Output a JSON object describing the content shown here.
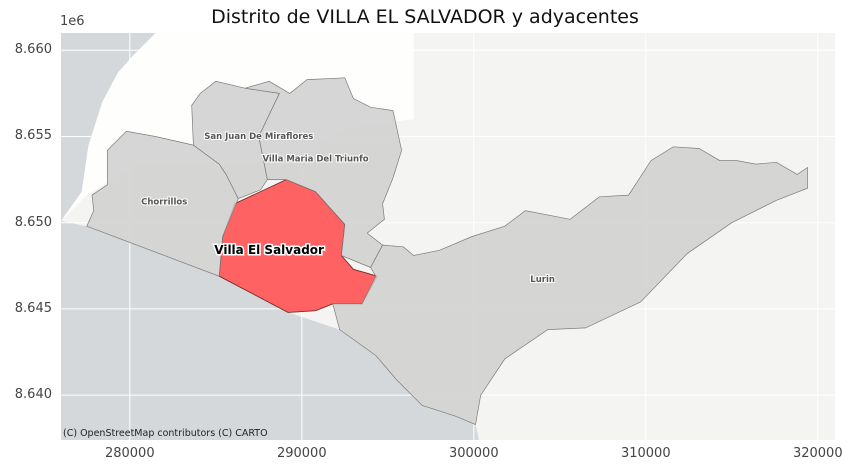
{
  "chart_data": {
    "type": "map",
    "title": "Distrito de VILLA EL SALVADOR y adyacentes",
    "axis_exponent_label": "1e6",
    "xlim": [
      276000,
      321000
    ],
    "ylim": [
      8637400,
      8661000
    ],
    "x_ticks": [
      {
        "value": 280000,
        "label": "280000"
      },
      {
        "value": 290000,
        "label": "290000"
      },
      {
        "value": 300000,
        "label": "300000"
      },
      {
        "value": 310000,
        "label": "310000"
      },
      {
        "value": 320000,
        "label": "320000"
      }
    ],
    "y_ticks": [
      {
        "value": 8640000,
        "label": "8.640"
      },
      {
        "value": 8645000,
        "label": "8.645"
      },
      {
        "value": 8650000,
        "label": "8.650"
      },
      {
        "value": 8655000,
        "label": "8.655"
      },
      {
        "value": 8660000,
        "label": "8.660"
      }
    ],
    "grid": true,
    "colors": {
      "highlight": "#ff5a5a",
      "neighbor": "#cfcfcf",
      "sea": "#d4d8da",
      "land": "#f4f4f2",
      "urban": "#ffffff",
      "grid": "#ffffff"
    },
    "districts": [
      {
        "name": "Villa El Salvador",
        "highlight": true,
        "label_at": [
          288100,
          8648400
        ],
        "boundary": [
          [
            286100,
            8651100
          ],
          [
            289100,
            8652500
          ],
          [
            290800,
            8651800
          ],
          [
            292500,
            8649900
          ],
          [
            292300,
            8648100
          ],
          [
            293000,
            8647300
          ],
          [
            294400,
            8646900
          ],
          [
            293500,
            8645300
          ],
          [
            291800,
            8645300
          ],
          [
            290800,
            8644900
          ],
          [
            289200,
            8644800
          ],
          [
            285200,
            8646900
          ],
          [
            285400,
            8649200
          ]
        ]
      },
      {
        "name": "Chorrillos",
        "highlight": false,
        "label_at": [
          282000,
          8651200
        ],
        "boundary": [
          [
            277800,
            8651600
          ],
          [
            278700,
            8652200
          ],
          [
            278700,
            8654200
          ],
          [
            279800,
            8655300
          ],
          [
            281500,
            8655000
          ],
          [
            283700,
            8654500
          ],
          [
            285200,
            8653400
          ],
          [
            285600,
            8652800
          ],
          [
            286300,
            8651400
          ],
          [
            285400,
            8649200
          ],
          [
            285200,
            8646900
          ],
          [
            277500,
            8649800
          ],
          [
            277900,
            8650700
          ]
        ]
      },
      {
        "name": "San Juan De Miraflores",
        "highlight": false,
        "label_at": [
          287500,
          8655000
        ],
        "boundary": [
          [
            283700,
            8654500
          ],
          [
            283600,
            8656800
          ],
          [
            284100,
            8657500
          ],
          [
            285000,
            8658200
          ],
          [
            286700,
            8657800
          ],
          [
            288700,
            8657500
          ],
          [
            287500,
            8655000
          ],
          [
            288000,
            8652500
          ],
          [
            287600,
            8651900
          ],
          [
            286300,
            8651400
          ],
          [
            285600,
            8652800
          ],
          [
            285200,
            8653400
          ]
        ]
      },
      {
        "name": "Villa Maria Del Triunfo",
        "highlight": false,
        "label_at": [
          290800,
          8653700
        ],
        "boundary": [
          [
            286700,
            8657800
          ],
          [
            288100,
            8658200
          ],
          [
            289300,
            8657500
          ],
          [
            290300,
            8658300
          ],
          [
            292500,
            8658400
          ],
          [
            293000,
            8657200
          ],
          [
            294000,
            8656700
          ],
          [
            295300,
            8656500
          ],
          [
            295800,
            8654200
          ],
          [
            295300,
            8652600
          ],
          [
            294700,
            8651100
          ],
          [
            294800,
            8650200
          ],
          [
            293800,
            8649400
          ],
          [
            294700,
            8648700
          ],
          [
            294000,
            8647400
          ],
          [
            292300,
            8648100
          ],
          [
            292500,
            8649900
          ],
          [
            290800,
            8651800
          ],
          [
            289100,
            8652500
          ],
          [
            288000,
            8652500
          ],
          [
            287500,
            8655000
          ],
          [
            288700,
            8657500
          ]
        ]
      },
      {
        "name": "Lurin",
        "highlight": false,
        "label_at": [
          304000,
          8646700
        ],
        "boundary": [
          [
            294300,
            8646900
          ],
          [
            294000,
            8647400
          ],
          [
            294700,
            8648700
          ],
          [
            295900,
            8648600
          ],
          [
            296500,
            8648100
          ],
          [
            298000,
            8648400
          ],
          [
            299900,
            8649200
          ],
          [
            301800,
            8649800
          ],
          [
            303000,
            8650700
          ],
          [
            305600,
            8650200
          ],
          [
            307300,
            8651500
          ],
          [
            309000,
            8651600
          ],
          [
            310300,
            8653600
          ],
          [
            311600,
            8654400
          ],
          [
            313100,
            8654300
          ],
          [
            314300,
            8653600
          ],
          [
            315300,
            8653600
          ],
          [
            316400,
            8653400
          ],
          [
            317600,
            8653500
          ],
          [
            318800,
            8652800
          ],
          [
            319400,
            8653200
          ],
          [
            319400,
            8652000
          ],
          [
            317600,
            8651300
          ],
          [
            315000,
            8650000
          ],
          [
            312400,
            8648200
          ],
          [
            309700,
            8645400
          ],
          [
            306500,
            8643900
          ],
          [
            304300,
            8643800
          ],
          [
            301800,
            8642100
          ],
          [
            300400,
            8640000
          ],
          [
            300100,
            8638300
          ],
          [
            298900,
            8638800
          ],
          [
            297000,
            8639400
          ],
          [
            295500,
            8640900
          ],
          [
            294300,
            8642300
          ],
          [
            292200,
            8643800
          ],
          [
            291800,
            8645300
          ],
          [
            293500,
            8645300
          ]
        ]
      }
    ],
    "coastline": [
      [
        276000,
        8650100
      ],
      [
        277500,
        8649800
      ],
      [
        285200,
        8646900
      ],
      [
        289200,
        8644800
      ],
      [
        292200,
        8643800
      ],
      [
        294300,
        8642300
      ],
      [
        295500,
        8640900
      ],
      [
        297000,
        8639400
      ],
      [
        298900,
        8638800
      ],
      [
        300100,
        8638300
      ],
      [
        300300,
        8637400
      ]
    ]
  },
  "attribution": "(C) OpenStreetMap contributors (C) CARTO"
}
